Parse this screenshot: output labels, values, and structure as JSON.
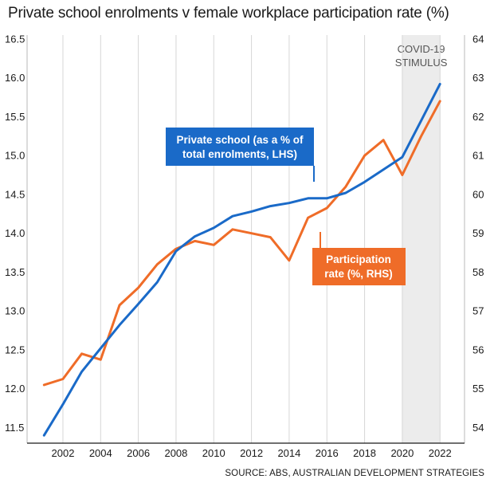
{
  "chart_data": {
    "type": "line",
    "title": "Private school enrolments v female workplace participation rate (%)",
    "source": "SOURCE: ABS, AUSTRALIAN DEVELOPMENT STRATEGIES",
    "x": [
      2001,
      2002,
      2003,
      2004,
      2005,
      2006,
      2007,
      2008,
      2009,
      2010,
      2011,
      2012,
      2013,
      2014,
      2015,
      2016,
      2017,
      2018,
      2019,
      2020,
      2021,
      2022
    ],
    "x_ticks": [
      "2002",
      "2004",
      "2006",
      "2008",
      "2010",
      "2012",
      "2014",
      "2016",
      "2018",
      "2020",
      "2022"
    ],
    "y_left": {
      "ylim": [
        11.3,
        16.55
      ],
      "ticks": [
        "11.5",
        "12.0",
        "12.5",
        "13.0",
        "13.5",
        "14.0",
        "14.5",
        "15.0",
        "15.5",
        "16.0",
        "16.5"
      ]
    },
    "y_right": {
      "ylim": [
        53.6,
        64.1
      ],
      "ticks": [
        "54",
        "55",
        "56",
        "57",
        "58",
        "59",
        "60",
        "61",
        "62",
        "63",
        "64"
      ]
    },
    "grid": "vertical",
    "series": [
      {
        "name": "Private school (as a % of total enrolments, LHS)",
        "axis": "left",
        "color": "#1a6ac8",
        "values": [
          11.4,
          11.8,
          12.22,
          12.52,
          12.82,
          13.09,
          13.37,
          13.77,
          13.96,
          14.07,
          14.22,
          14.28,
          14.35,
          14.39,
          14.45,
          14.45,
          14.52,
          14.66,
          14.82,
          14.98,
          15.45,
          15.92
        ]
      },
      {
        "name": "Participation rate (%, RHS)",
        "axis": "right",
        "color": "#ef6c28",
        "values": [
          55.1,
          55.25,
          55.9,
          55.75,
          57.15,
          57.6,
          58.2,
          58.6,
          58.8,
          58.7,
          59.1,
          59.0,
          58.9,
          58.3,
          59.4,
          59.65,
          60.2,
          61.0,
          61.4,
          60.5,
          61.5,
          62.4
        ]
      }
    ],
    "shaded_region": {
      "from": 2020,
      "to": 2022,
      "label_lines": [
        "COVID-19",
        "STIMULUS"
      ],
      "color": "#ececec"
    },
    "annotations": [
      {
        "series": "Private school (as a % of total enrolments, LHS)",
        "lines": [
          "Private school (as a % of",
          "total enrolments, LHS)"
        ],
        "color": "#1a6ac8"
      },
      {
        "series": "Participation rate (%, RHS)",
        "lines": [
          "Participation",
          "rate (%, RHS)"
        ],
        "color": "#ef6c28"
      }
    ]
  }
}
